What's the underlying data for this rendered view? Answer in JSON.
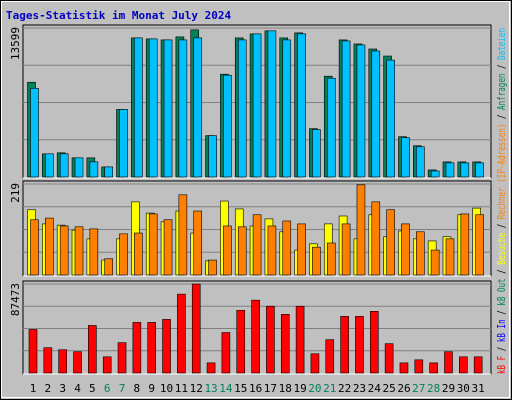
{
  "chart_data": [
    {
      "type": "bar",
      "title": "Tages-Statistik im Monat July 2024",
      "ylim": [
        0,
        13599
      ],
      "yticks": [
        13599
      ],
      "series": [
        {
          "name": "Anfragen",
          "color": "#00805c",
          "values": [
            8648,
            2116,
            2208,
            1748,
            1748,
            920,
            6164,
            12696,
            12604,
            12512,
            12788,
            13432,
            3772,
            9384,
            12696,
            13064,
            13340,
            12696,
            13156,
            4416,
            9200,
            12512,
            12144,
            11684,
            11040,
            3680,
            2852,
            644,
            1380,
            1380,
            1380
          ]
        },
        {
          "name": "Dateien",
          "color": "#00c0ff",
          "values": [
            8096,
            2116,
            2116,
            1748,
            1380,
            920,
            6164,
            12696,
            12604,
            12512,
            12512,
            12696,
            3772,
            9292,
            12512,
            13064,
            13340,
            12512,
            13064,
            4324,
            9016,
            12420,
            12052,
            11500,
            10672,
            3588,
            2760,
            552,
            1288,
            1288,
            1288
          ]
        }
      ]
    },
    {
      "type": "bar",
      "ylim": [
        0,
        219
      ],
      "yticks": [
        219
      ],
      "series": [
        {
          "name": "Besuche",
          "color": "#ffff00",
          "values": [
            157,
            123,
            120,
            108,
            87,
            36,
            87,
            176,
            149,
            128,
            154,
            101,
            34,
            178,
            159,
            118,
            135,
            104,
            60,
            75,
            123,
            142,
            87,
            145,
            92,
            106,
            87,
            82,
            92,
            145,
            161
          ]
        },
        {
          "name": "Rechner (IP-Adressen)",
          "color": "#ff8000",
          "values": [
            133,
            137,
            118,
            116,
            111,
            39,
            99,
            101,
            147,
            133,
            193,
            154,
            36,
            118,
            116,
            145,
            118,
            130,
            123,
            67,
            77,
            123,
            217,
            176,
            157,
            123,
            104,
            60,
            87,
            147,
            145
          ]
        }
      ]
    },
    {
      "type": "bar",
      "ylim": [
        0,
        87473
      ],
      "yticks": [
        87473
      ],
      "series": [
        {
          "name": "kB F",
          "color": "#ff0000",
          "values": [
            42742,
            24850,
            22862,
            20874,
            46718,
            15904,
            29820,
            49702,
            49702,
            52684,
            77534,
            87473,
            9940,
            39760,
            61634,
            71574,
            65610,
            57660,
            65610,
            18886,
            32802,
            55672,
            55672,
            60640,
            28826,
            9940,
            12922,
            9940,
            20874,
            15904,
            15904
          ]
        }
      ],
      "legend_extra": [
        {
          "name": "kB In",
          "color": "#0000ff"
        },
        {
          "name": "kB Out",
          "color": "#00805c"
        }
      ],
      "categories": [
        "1",
        "2",
        "3",
        "4",
        "5",
        "6",
        "7",
        "8",
        "9",
        "10",
        "11",
        "12",
        "13",
        "14",
        "15",
        "16",
        "17",
        "18",
        "19",
        "20",
        "21",
        "22",
        "23",
        "24",
        "25",
        "26",
        "27",
        "28",
        "29",
        "30",
        "31"
      ],
      "category_colors": [
        "#000000",
        "#000000",
        "#000000",
        "#000000",
        "#000000",
        "#00805c",
        "#00805c",
        "#000000",
        "#000000",
        "#000000",
        "#000000",
        "#000000",
        "#00805c",
        "#00805c",
        "#000000",
        "#000000",
        "#000000",
        "#000000",
        "#000000",
        "#00805c",
        "#00805c",
        "#000000",
        "#000000",
        "#000000",
        "#000000",
        "#000000",
        "#00805c",
        "#00805c",
        "#000000",
        "#000000",
        "#000000"
      ]
    }
  ],
  "legend_separator": " / "
}
